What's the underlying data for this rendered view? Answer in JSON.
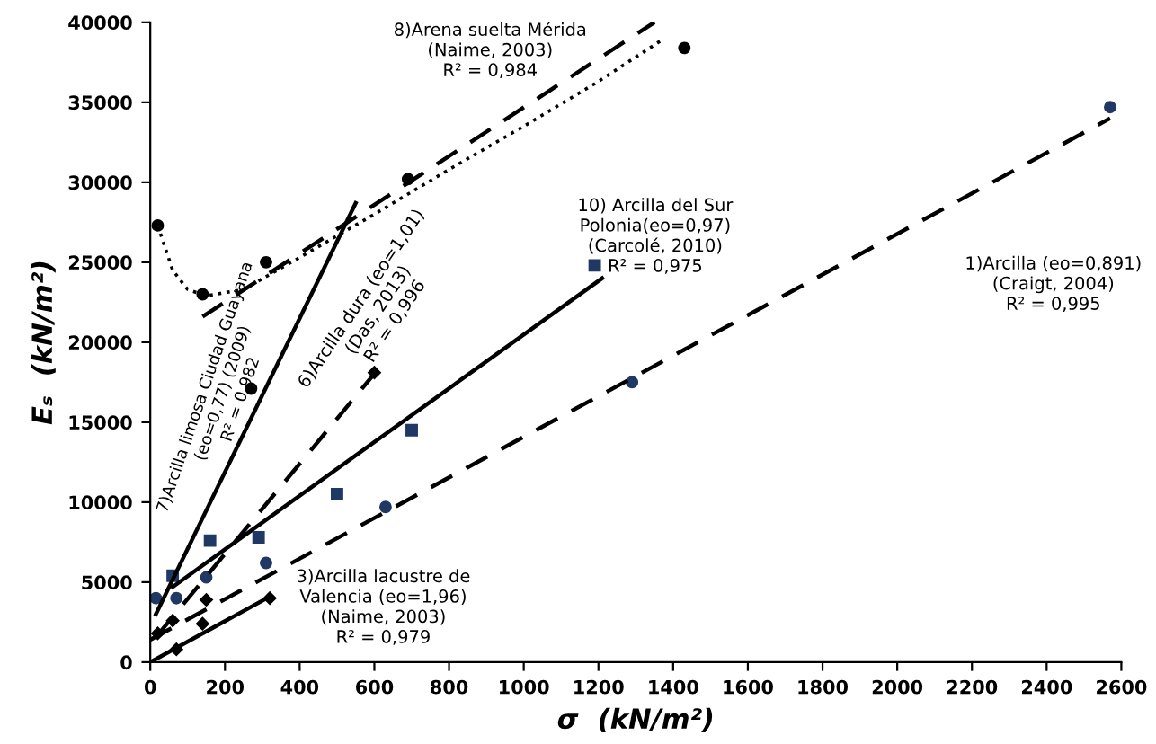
{
  "chart_data": {
    "type": "scatter",
    "xlabel": "σ  (kN/m²)",
    "ylabel": "Eₛ  (kN/m²)",
    "xlim": [
      0,
      2600
    ],
    "xticks": [
      0,
      200,
      400,
      600,
      800,
      1000,
      1200,
      1400,
      1600,
      1800,
      2000,
      2200,
      2400,
      2600
    ],
    "ylim": [
      0,
      40000
    ],
    "yticks": [
      0,
      5000,
      10000,
      15000,
      20000,
      25000,
      30000,
      35000,
      40000
    ],
    "grid": false,
    "legend": false,
    "series": [
      {
        "marker": "circle",
        "color": "#1f3864",
        "x": [
          15,
          70,
          150,
          310,
          630,
          1290,
          2570
        ],
        "values": [
          4000,
          4000,
          5300,
          6200,
          9700,
          17500,
          34700
        ]
      },
      {
        "type": "line",
        "line_style": "dashed",
        "color": "#000000",
        "x": [
          0,
          2570
        ],
        "values": [
          1400,
          34000
        ]
      },
      {
        "marker": "square",
        "color": "#1f3864",
        "x": [
          60,
          160,
          290,
          500,
          700,
          1190
        ],
        "values": [
          5400,
          7600,
          7800,
          10500,
          14500,
          24800
        ]
      },
      {
        "type": "line",
        "line_style": "solid",
        "color": "#000000",
        "x": [
          60,
          1210
        ],
        "values": [
          4700,
          24000
        ]
      },
      {
        "marker": "diamond",
        "color": "#000000",
        "x": [
          20,
          70,
          140,
          320
        ],
        "values": [
          1800,
          800,
          2400,
          4000
        ]
      },
      {
        "type": "line",
        "line_style": "solid",
        "color": "#000000",
        "x": [
          0,
          320
        ],
        "values": [
          0,
          4100
        ]
      },
      {
        "marker": "diamond",
        "color": "#000000",
        "x": [
          60,
          150,
          600
        ],
        "values": [
          2600,
          3900,
          18100
        ]
      },
      {
        "type": "line",
        "line_style": "dashed",
        "color": "#000000",
        "x": [
          20,
          620
        ],
        "values": [
          1700,
          18600
        ]
      },
      {
        "marker": "circle",
        "color": "#000000",
        "x": [
          270
        ],
        "values": [
          17100
        ]
      },
      {
        "type": "line",
        "line_style": "solid",
        "color": "#000000",
        "x": [
          15,
          550
        ],
        "values": [
          3000,
          28700
        ]
      },
      {
        "marker": "circle",
        "color": "#000000",
        "x": [
          20,
          140,
          310,
          690,
          1430
        ],
        "values": [
          27300,
          23000,
          25000,
          30200,
          38400
        ]
      },
      {
        "type": "line",
        "line_style": "dashed",
        "color": "#000000",
        "x": [
          140,
          1350
        ],
        "values": [
          21600,
          40000
        ]
      },
      {
        "type": "line",
        "line_style": "dotted",
        "color": "#000000",
        "x": [
          20,
          60,
          100,
          150,
          250,
          400,
          600,
          800,
          1000,
          1200,
          1370
        ],
        "values": [
          27300,
          24500,
          23300,
          22900,
          23300,
          25300,
          28000,
          30800,
          33500,
          36300,
          38900
        ]
      }
    ],
    "annotations": [
      "8)Arena suelta Mérida\n(Naime, 2003)\nR² = 0,984",
      "10) Arcilla del Sur\nPolonia(eo=0,97)\n(Carcolé, 2010)\nR² = 0,975",
      "1)Arcilla (eo=0,891)\n(Craigt, 2004)\nR² = 0,995",
      "3)Arcilla lacustre de\nValencia (eo=1,96)\n(Naime, 2003)\nR² = 0,979",
      "6)Arcilla dura (eo=1,01)\n(Das, 2013)\nR² = 0,996",
      "7)Arcilla limosa Ciudad Guayana\n(eo=0,77) (2009)\nR² = 0,982"
    ]
  }
}
